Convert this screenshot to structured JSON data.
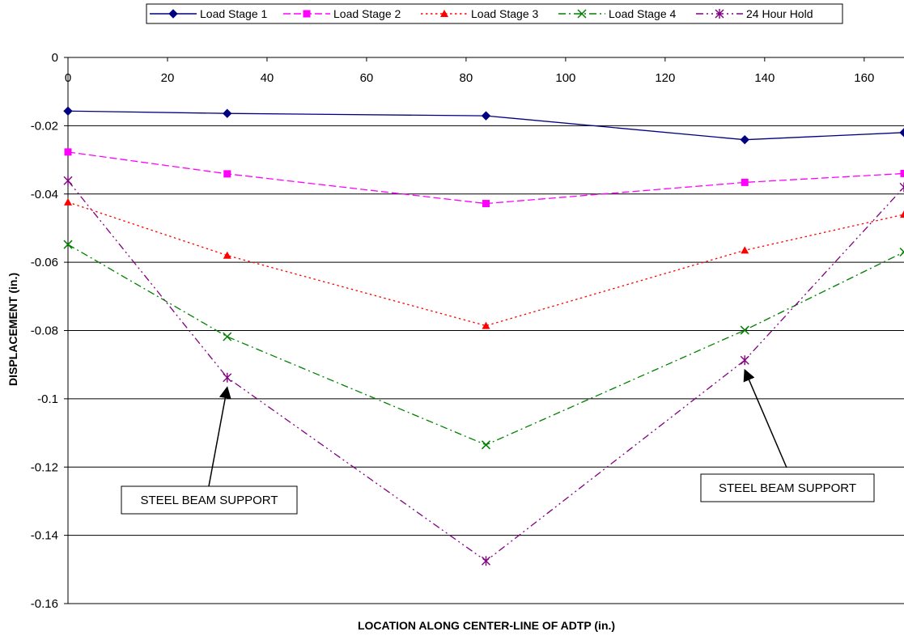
{
  "chart_data": {
    "type": "line",
    "xlabel": "LOCATION ALONG CENTER-LINE OF ADTP (in.)",
    "ylabel": "DISPLACEMENT (in.)",
    "xlim": [
      0,
      168
    ],
    "ylim": [
      -0.16,
      0
    ],
    "x_ticks": [
      0,
      20,
      40,
      60,
      80,
      100,
      120,
      140,
      160
    ],
    "y_ticks": [
      0,
      -0.02,
      -0.04,
      -0.06,
      -0.08,
      -0.1,
      -0.12,
      -0.14,
      -0.16
    ],
    "x_tick_labels": [
      "0",
      "20",
      "40",
      "60",
      "80",
      "100",
      "120",
      "140",
      "160"
    ],
    "y_tick_labels": [
      "0",
      "-0.02",
      "-0.04",
      "-0.06",
      "-0.08",
      "-0.1",
      "-0.12",
      "-0.14",
      "-0.16"
    ],
    "grid": "horizontal",
    "legend_position": "top",
    "x": [
      0,
      32,
      84,
      136,
      168
    ],
    "series": [
      {
        "name": "Load Stage 1",
        "color": "#000080",
        "marker": "diamond",
        "dash": "solid",
        "values": [
          -0.0157,
          -0.0164,
          -0.0171,
          -0.0241,
          -0.022
        ]
      },
      {
        "name": "Load Stage 2",
        "color": "#FF00FF",
        "marker": "square",
        "dash": "dashed",
        "values": [
          -0.0277,
          -0.0341,
          -0.0428,
          -0.0366,
          -0.034
        ]
      },
      {
        "name": "Load Stage 3",
        "color": "#FF0000",
        "marker": "triangle",
        "dash": "dotted",
        "values": [
          -0.0424,
          -0.058,
          -0.0786,
          -0.0565,
          -0.046
        ]
      },
      {
        "name": "Load Stage 4",
        "color": "#008000",
        "marker": "x",
        "dash": "dashdot",
        "values": [
          -0.0548,
          -0.0818,
          -0.1135,
          -0.0799,
          -0.057
        ]
      },
      {
        "name": "24 Hour Hold",
        "color": "#800080",
        "marker": "star",
        "dash": "dashdotdot",
        "values": [
          -0.0361,
          -0.0938,
          -0.1475,
          -0.0887,
          -0.038
        ]
      }
    ],
    "annotations": [
      {
        "text": "STEEL BEAM SUPPORT",
        "x": 32,
        "y": -0.0938
      },
      {
        "text": "STEEL BEAM SUPPORT",
        "x": 136,
        "y": -0.0887
      }
    ]
  }
}
